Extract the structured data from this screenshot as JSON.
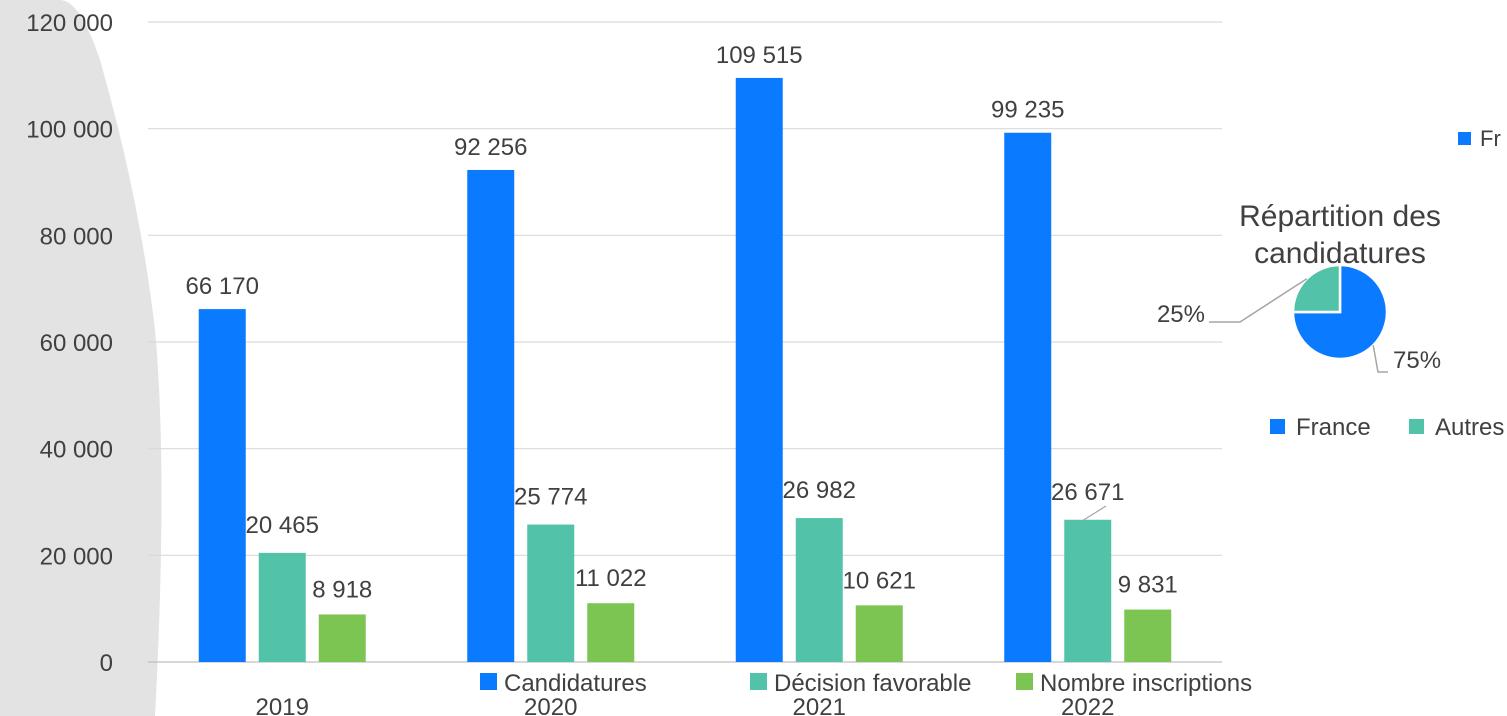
{
  "chart_data": [
    {
      "type": "bar",
      "categories": [
        "2019",
        "2020",
        "2021",
        "2022"
      ],
      "series": [
        {
          "name": "Candidatures",
          "values": [
            66170,
            92256,
            109515,
            99235
          ],
          "labels": [
            "66 170",
            "92 256",
            "109 515",
            "99 235"
          ],
          "color": "#0A7BFF"
        },
        {
          "name": "Décision favorable",
          "values": [
            20465,
            25774,
            26982,
            26671
          ],
          "labels": [
            "20 465",
            "25 774",
            "26 982",
            "26 671"
          ],
          "color": "#52C3A8"
        },
        {
          "name": "Nombre inscriptions",
          "values": [
            8918,
            11022,
            10621,
            9831
          ],
          "labels": [
            "8 918",
            "11 022",
            "10 621",
            "9 831"
          ],
          "color": "#7DC552"
        }
      ],
      "ylim": [
        0,
        120000
      ],
      "yticks": [
        0,
        20000,
        40000,
        60000,
        80000,
        100000,
        120000
      ],
      "ytick_labels": [
        "0",
        "20 000",
        "40 000",
        "60 000",
        "80 000",
        "100 000",
        "120 000"
      ],
      "grid": true,
      "legend": "bottom"
    },
    {
      "type": "pie",
      "title": "Répartition des candidatures",
      "categories": [
        "France",
        "Autres pays"
      ],
      "values": [
        75,
        25
      ],
      "labels": [
        "75%",
        "25%"
      ],
      "colors": [
        "#0A7BFF",
        "#52C3A8"
      ],
      "legend": "bottom",
      "clipped_legend_text": "Fr"
    }
  ]
}
